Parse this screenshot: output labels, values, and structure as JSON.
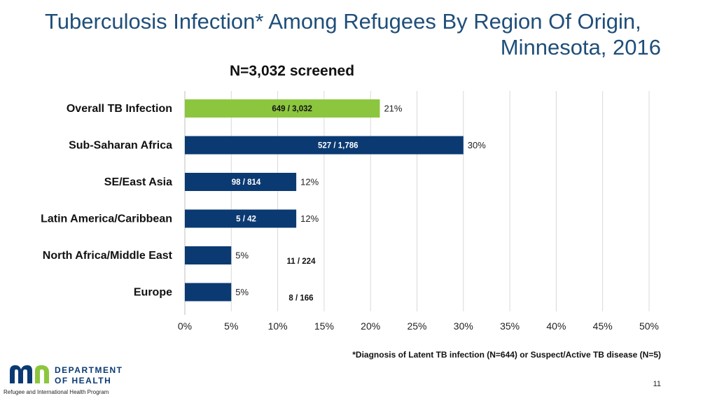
{
  "title_line1": "Tuberculosis Infection* Among Refugees By Region Of Origin,",
  "title_line2": "Minnesota, 2016",
  "subtitle": "N=3,032 screened",
  "footnote": "*Diagnosis of Latent TB infection (N=644) or Suspect/Active TB disease (N=5)",
  "page_number": "11",
  "logo": {
    "line1": "DEPARTMENT",
    "line2": "OF HEALTH"
  },
  "program_name": "Refugee and International Health Program",
  "colors": {
    "highlight": "#8cc63f",
    "bar": "#0b3a73",
    "title": "#1f4e79",
    "grid": "#d9d9d9"
  },
  "chart_data": {
    "type": "bar",
    "orientation": "horizontal",
    "categories": [
      "Overall TB Infection",
      "Sub-Saharan Africa",
      "SE/East Asia",
      "Latin America/Caribbean",
      "North Africa/Middle East",
      "Europe"
    ],
    "values": [
      21,
      30,
      12,
      12,
      5,
      5
    ],
    "value_labels": [
      "21%",
      "30%",
      "12%",
      "12%",
      "5%",
      "5%"
    ],
    "count_labels": [
      "649 / 3,032",
      "527  / 1,786",
      "98 / 814",
      "5 / 42",
      "11 / 224",
      "8 / 166"
    ],
    "xlim": [
      0,
      50
    ],
    "x_ticks": [
      "0%",
      "5%",
      "10%",
      "15%",
      "20%",
      "25%",
      "30%",
      "35%",
      "40%",
      "45%",
      "50%"
    ],
    "grid": true,
    "legend": "none"
  }
}
